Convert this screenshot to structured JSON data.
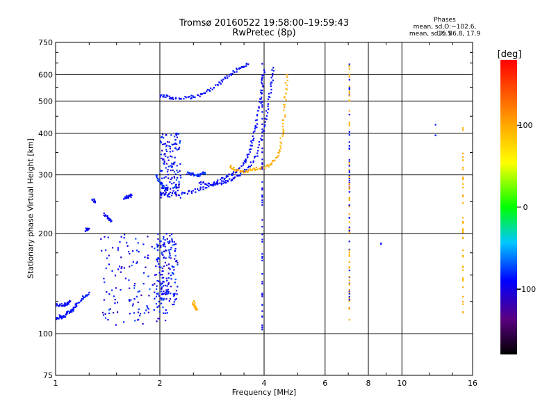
{
  "chart_data": {
    "type": "scatter",
    "title": "Tromsø 20160522 19:58:00–19:59:43",
    "subtitle": "RwPretec (8p)",
    "phases_heading": "Phases",
    "phases_o": "mean, sd,O:−102.6, 15.5",
    "phases_x": "mean, sd,X:  86.8, 17.9",
    "xlabel": "Frequency [MHz]",
    "ylabel": "Stationary phase Virtual Height [km]",
    "x_scale": "log",
    "y_scale": "log",
    "xlim": [
      1,
      16
    ],
    "ylim": [
      75,
      750
    ],
    "x_ticks": [
      1,
      2,
      4,
      6,
      8,
      10,
      16
    ],
    "x_tick_labels": [
      "1",
      "2",
      "4",
      "6",
      "8",
      "10",
      "16"
    ],
    "y_ticks": [
      75,
      100,
      200,
      300,
      400,
      500,
      600,
      750
    ],
    "y_tick_labels": [
      "75",
      "100",
      "200",
      "300",
      "400",
      "500",
      "600",
      "750"
    ],
    "grid": true,
    "colorbar": {
      "label": "[deg]",
      "range": [
        -180,
        180
      ],
      "ticks": [
        100,
        0,
        -100
      ],
      "tick_labels": [
        "100",
        "0",
        "−100"
      ]
    },
    "series": [
      {
        "traces": [
          {
            "phase": -95,
            "points": [
              [
                1.0,
                110
              ],
              [
                1.03,
                113
              ],
              [
                1.05,
                112
              ],
              [
                1.08,
                115
              ],
              [
                1.12,
                118
              ],
              [
                1.15,
                122
              ],
              [
                1.2,
                128
              ],
              [
                1.25,
                133
              ]
            ]
          },
          {
            "phase": -100,
            "points": [
              [
                1.0,
                122
              ],
              [
                1.05,
                122
              ],
              [
                1.08,
                123
              ],
              [
                1.1,
                125
              ]
            ]
          },
          {
            "phase": -100,
            "points": [
              [
                1.22,
                205
              ],
              [
                1.25,
                207
              ]
            ]
          },
          {
            "phase": -100,
            "points": [
              [
                1.28,
                252
              ],
              [
                1.3,
                250
              ]
            ]
          },
          {
            "phase": -100,
            "points": [
              [
                1.38,
                230
              ],
              [
                1.42,
                222
              ],
              [
                1.45,
                218
              ]
            ]
          },
          {
            "phase": -100,
            "points": [
              [
                1.58,
                255
              ],
              [
                1.63,
                258
              ],
              [
                1.65,
                262
              ]
            ]
          },
          {
            "phase": -100,
            "points": [
              [
                2.0,
                520
              ],
              [
                2.1,
                515
              ],
              [
                2.2,
                510
              ],
              [
                2.4,
                512
              ],
              [
                2.6,
                520
              ],
              [
                2.8,
                540
              ],
              [
                3.0,
                570
              ],
              [
                3.2,
                600
              ],
              [
                3.4,
                630
              ],
              [
                3.6,
                645
              ]
            ]
          },
          {
            "phase": -100,
            "points": [
              [
                2.0,
                265
              ],
              [
                2.1,
                262
              ],
              [
                2.3,
                263
              ],
              [
                2.5,
                268
              ],
              [
                2.7,
                275
              ],
              [
                2.9,
                285
              ],
              [
                3.1,
                295
              ],
              [
                3.3,
                305
              ],
              [
                3.5,
                325
              ],
              [
                3.6,
                345
              ],
              [
                3.7,
                380
              ],
              [
                3.8,
                430
              ],
              [
                3.9,
                500
              ],
              [
                3.95,
                560
              ],
              [
                4.0,
                620
              ]
            ]
          },
          {
            "phase": -100,
            "points": [
              [
                2.6,
                285
              ],
              [
                2.8,
                280
              ],
              [
                3.0,
                283
              ],
              [
                3.2,
                290
              ],
              [
                3.4,
                300
              ],
              [
                3.6,
                315
              ],
              [
                3.8,
                345
              ],
              [
                4.0,
                410
              ],
              [
                4.1,
                480
              ],
              [
                4.2,
                560
              ],
              [
                4.25,
                630
              ]
            ]
          },
          {
            "phase": -90,
            "points": [
              [
                1.95,
                300
              ],
              [
                2.0,
                285
              ],
              [
                2.05,
                275
              ],
              [
                2.1,
                270
              ]
            ]
          },
          {
            "phase": -90,
            "points": [
              [
                2.4,
                305
              ],
              [
                2.5,
                300
              ],
              [
                2.6,
                300
              ],
              [
                2.7,
                305
              ]
            ]
          },
          {
            "phase": 100,
            "points": [
              [
                3.2,
                320
              ],
              [
                3.3,
                310
              ],
              [
                3.5,
                308
              ],
              [
                3.7,
                310
              ],
              [
                3.9,
                315
              ],
              [
                4.1,
                320
              ],
              [
                4.3,
                330
              ],
              [
                4.45,
                360
              ],
              [
                4.55,
                420
              ],
              [
                4.6,
                500
              ],
              [
                4.65,
                600
              ]
            ]
          },
          {
            "phase": 100,
            "points": [
              [
                2.5,
                125
              ],
              [
                2.52,
                120
              ],
              [
                2.55,
                118
              ]
            ]
          }
        ],
        "clusters": [
          {
            "phase": -100,
            "f": [
              1.35,
              2.1
            ],
            "h": [
              105,
              200
            ]
          },
          {
            "phase": -100,
            "f": [
              2.0,
              2.3
            ],
            "h": [
              255,
              400
            ]
          },
          {
            "phase": -100,
            "f": [
              1.95,
              2.25
            ],
            "h": [
              120,
              200
            ]
          }
        ],
        "columns": [
          {
            "phase": -100,
            "f": 7.05,
            "h": [
              110,
              650
            ]
          },
          {
            "phase": 100,
            "f": 7.05,
            "h": [
              110,
              650
            ]
          },
          {
            "phase": -100,
            "f": 3.95,
            "h": [
              100,
              650
            ]
          },
          {
            "phase": 100,
            "f": 15.0,
            "h": [
              110,
              420
            ]
          },
          {
            "phase": -100,
            "f": 12.5,
            "h": [
              390,
              430
            ]
          },
          {
            "phase": -100,
            "f": 8.7,
            "h": [
              186,
              188
            ]
          }
        ]
      }
    ]
  }
}
